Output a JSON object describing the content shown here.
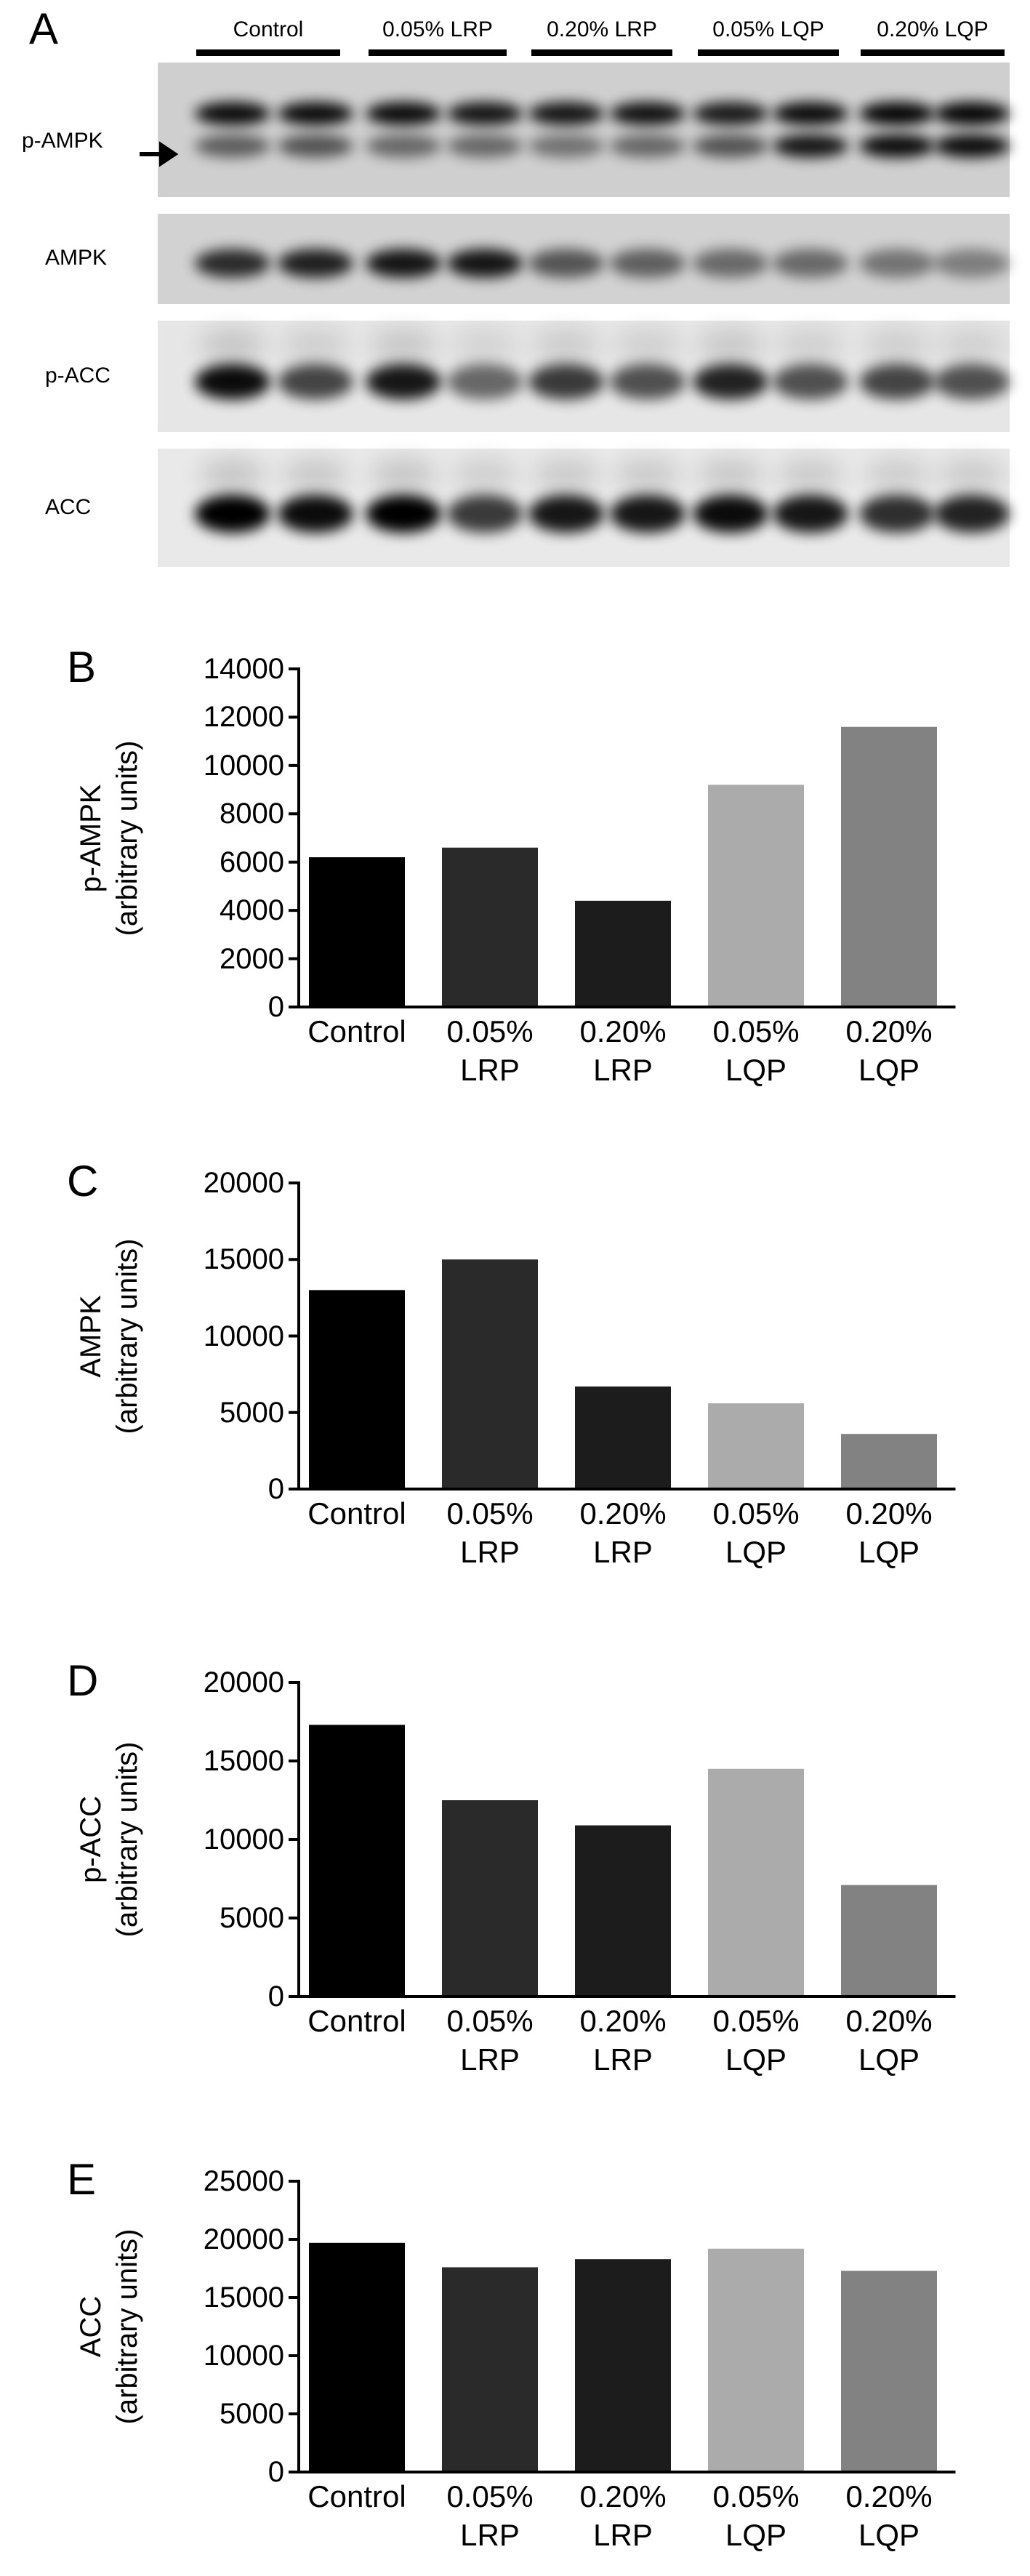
{
  "blot": {
    "panel": "A",
    "groups": [
      "Control",
      "0.05% LRP",
      "0.20% LRP",
      "0.05% LQP",
      "0.20% LQP"
    ],
    "rows": [
      "p-AMPK",
      "AMPK",
      "p-ACC",
      "ACC"
    ]
  },
  "chart_data": [
    {
      "type": "bar",
      "panel": "B",
      "ylabel": "p-AMPK\n(arbitrary units)",
      "categories": [
        "Control",
        "0.05%\nLRP",
        "0.20%\nLRP",
        "0.05%\nLQP",
        "0.20%\nLQP"
      ],
      "values": [
        6200,
        6600,
        4400,
        9200,
        11600
      ],
      "colors": [
        "#000000",
        "#2a2a2a",
        "#1c1c1c",
        "#ababab",
        "#828282"
      ],
      "ylim": [
        0,
        14000
      ],
      "yticks": [
        0,
        2000,
        4000,
        6000,
        8000,
        10000,
        12000,
        14000
      ]
    },
    {
      "type": "bar",
      "panel": "C",
      "ylabel": "AMPK\n(arbitrary units)",
      "categories": [
        "Control",
        "0.05%\nLRP",
        "0.20%\nLRP",
        "0.05%\nLQP",
        "0.20%\nLQP"
      ],
      "values": [
        13000,
        15000,
        6700,
        5600,
        3600
      ],
      "colors": [
        "#000000",
        "#2a2a2a",
        "#1c1c1c",
        "#ababab",
        "#828282"
      ],
      "ylim": [
        0,
        20000
      ],
      "yticks": [
        0,
        5000,
        10000,
        15000,
        20000
      ]
    },
    {
      "type": "bar",
      "panel": "D",
      "ylabel": "p-ACC\n(arbitrary units)",
      "categories": [
        "Control",
        "0.05%\nLRP",
        "0.20%\nLRP",
        "0.05%\nLQP",
        "0.20%\nLQP"
      ],
      "values": [
        17300,
        12500,
        10900,
        14500,
        7100
      ],
      "colors": [
        "#000000",
        "#2a2a2a",
        "#1c1c1c",
        "#ababab",
        "#828282"
      ],
      "ylim": [
        0,
        20000
      ],
      "yticks": [
        0,
        5000,
        10000,
        15000,
        20000
      ]
    },
    {
      "type": "bar",
      "panel": "E",
      "ylabel": "ACC\n(arbitrary units)",
      "categories": [
        "Control",
        "0.05%\nLRP",
        "0.20%\nLRP",
        "0.05%\nLQP",
        "0.20%\nLQP"
      ],
      "values": [
        19700,
        17600,
        18300,
        19200,
        17300
      ],
      "colors": [
        "#000000",
        "#2a2a2a",
        "#1c1c1c",
        "#ababab",
        "#828282"
      ],
      "ylim": [
        0,
        25000
      ],
      "yticks": [
        0,
        5000,
        10000,
        15000,
        20000,
        25000
      ]
    }
  ]
}
